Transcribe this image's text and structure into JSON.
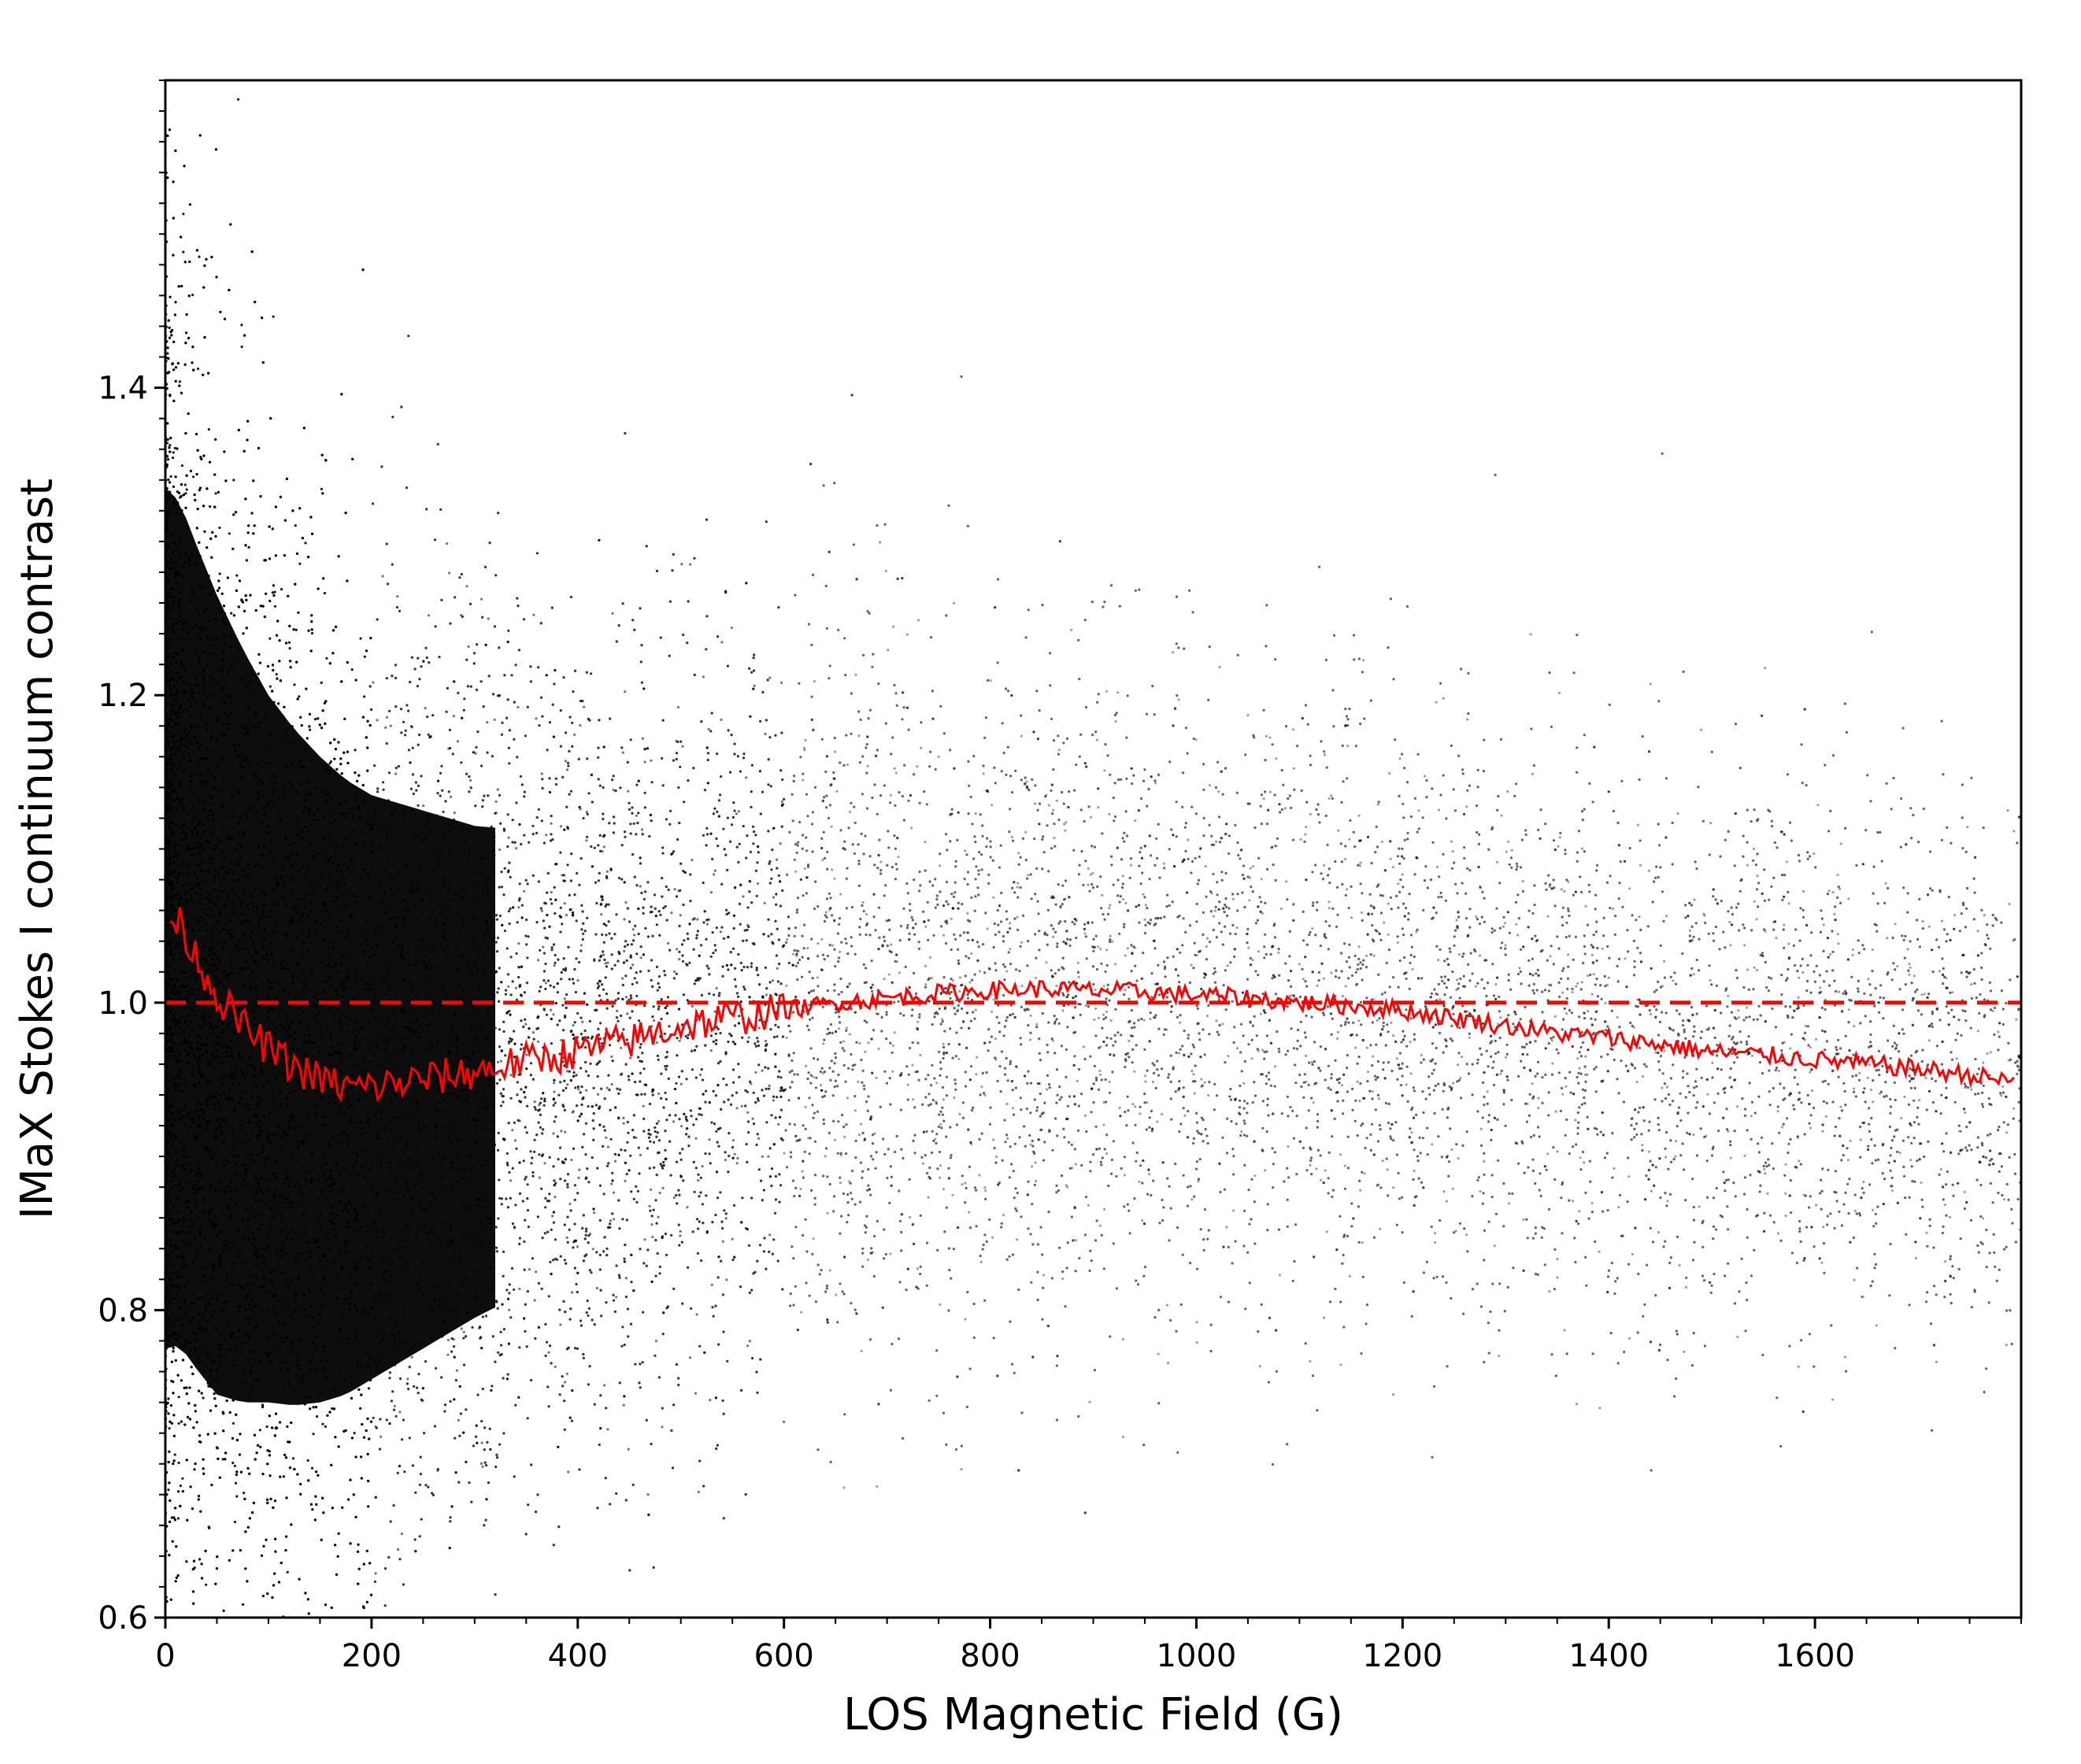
{
  "chart_data": {
    "type": "scatter",
    "title": "",
    "xlabel": "LOS Magnetic Field (G)",
    "ylabel": "IMaX Stokes I continuum contrast",
    "xlim": [
      0,
      1800
    ],
    "ylim": [
      0.6,
      1.6
    ],
    "xticks": [
      0,
      200,
      400,
      600,
      800,
      1000,
      1200,
      1400,
      1600
    ],
    "xtick_labels": [
      "0",
      "200",
      "400",
      "600",
      "800",
      "1000",
      "1200",
      "1400",
      "1600"
    ],
    "yticks": [
      0.6,
      0.8,
      1.0,
      1.2,
      1.4
    ],
    "ytick_labels": [
      "0.6",
      "0.8",
      "1.0",
      "1.2",
      "1.4"
    ],
    "grid": false,
    "legend": "none",
    "colors": {
      "scatter": "#000000",
      "mean_curve": "#ff0000",
      "reference_line": "#ff0000"
    },
    "scatter_description": "dense cloud of points; near-saturated black at low field, spread narrowing from about 0.65-1.55 at 0 G to about 0.75-1.25 at 1800 G",
    "scatter_envelope": {
      "x": [
        0,
        50,
        100,
        200,
        300,
        400,
        600,
        800,
        1000,
        1200,
        1400,
        1600,
        1800
      ],
      "core_half_width": [
        0.28,
        0.26,
        0.23,
        0.19,
        0.16,
        0.14,
        0.12,
        0.11,
        0.1,
        0.1,
        0.095,
        0.09,
        0.085
      ],
      "outer_half_width": [
        0.45,
        0.43,
        0.4,
        0.35,
        0.31,
        0.28,
        0.25,
        0.23,
        0.22,
        0.21,
        0.2,
        0.19,
        0.18
      ]
    },
    "series": [
      {
        "style": "solid-line",
        "x": [
          5,
          15,
          30,
          50,
          75,
          100,
          125,
          150,
          175,
          200,
          250,
          300,
          350,
          400,
          450,
          500,
          550,
          600,
          650,
          700,
          750,
          800,
          850,
          900,
          950,
          1000,
          1050,
          1100,
          1150,
          1200,
          1250,
          1300,
          1350,
          1400,
          1450,
          1500,
          1550,
          1600,
          1650,
          1700,
          1750,
          1795
        ],
        "y": [
          1.055,
          1.05,
          1.03,
          1.005,
          0.985,
          0.97,
          0.958,
          0.95,
          0.945,
          0.945,
          0.95,
          0.955,
          0.962,
          0.968,
          0.975,
          0.985,
          0.99,
          0.995,
          1.0,
          1.003,
          1.006,
          1.008,
          1.009,
          1.008,
          1.007,
          1.005,
          1.003,
          1.0,
          0.998,
          0.995,
          0.99,
          0.985,
          0.98,
          0.977,
          0.973,
          0.968,
          0.966,
          0.963,
          0.96,
          0.957,
          0.953,
          0.948
        ]
      },
      {
        "style": "dashed-line",
        "x": [
          0,
          1800
        ],
        "y": [
          1.0,
          1.0
        ]
      }
    ]
  }
}
